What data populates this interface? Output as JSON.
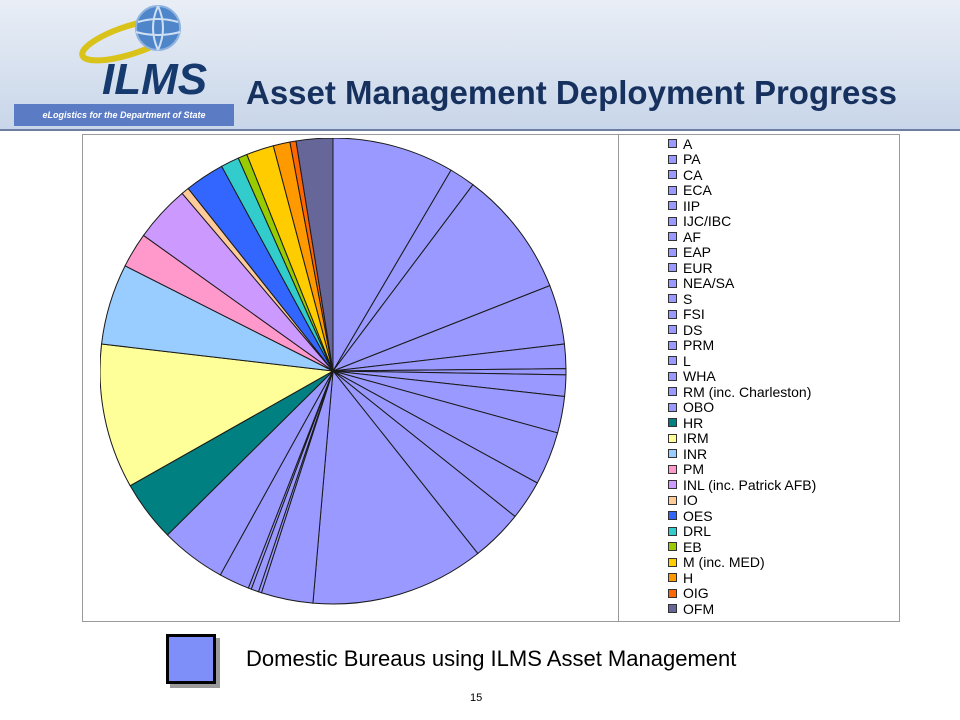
{
  "header": {
    "logo_text": "ILMS",
    "tagline": "eLogistics for the Department of State",
    "title": "Asset Management Deployment Progress"
  },
  "key": {
    "label": "Domestic Bureaus using ILMS Asset Management",
    "color": "#7f8ffa"
  },
  "page_number": "15",
  "colors": {
    "domestic": "#9999ff",
    "header_bg": "#dbe4f1",
    "title": "#17315f",
    "tagline_bg": "#5b7cc4"
  },
  "chart_data": {
    "type": "pie",
    "title": "",
    "start_angle_deg": 0,
    "direction": "clockwise",
    "legend_position": "right",
    "categories": [
      "A",
      "PA",
      "CA",
      "ECA",
      "IIP",
      "IJC/IBC",
      "AF",
      "EAP",
      "EUR",
      "NEA/SA",
      "S",
      "FSI",
      "DS",
      "PRM",
      "L",
      "WHA",
      "RM (inc. Charleston)",
      "OBO",
      "HR",
      "IRM",
      "INR",
      "PM",
      "INL (inc. Patrick AFB)",
      "IO",
      "OES",
      "DRL",
      "EB",
      "M (inc. MED)",
      "H",
      "OIG",
      "OFM"
    ],
    "values": [
      8.0,
      1.7,
      8.3,
      3.9,
      1.6,
      0.4,
      1.4,
      2.4,
      3.5,
      2.6,
      3.4,
      11.4,
      3.4,
      0.2,
      0.5,
      0.2,
      2.0,
      4.3,
      4.0,
      9.5,
      5.3,
      2.3,
      3.7,
      0.5,
      2.6,
      1.2,
      0.6,
      1.8,
      1.1,
      0.4,
      2.4
    ],
    "colors": [
      "#9999ff",
      "#9999ff",
      "#9999ff",
      "#9999ff",
      "#9999ff",
      "#9999ff",
      "#9999ff",
      "#9999ff",
      "#9999ff",
      "#9999ff",
      "#9999ff",
      "#9999ff",
      "#9999ff",
      "#9999ff",
      "#9999ff",
      "#9999ff",
      "#9999ff",
      "#9999ff",
      "#008080",
      "#ffff99",
      "#99ccff",
      "#ff99cc",
      "#cc99ff",
      "#ffcc99",
      "#3366ff",
      "#33cccc",
      "#99cc00",
      "#ffcc00",
      "#ff9900",
      "#ff6600",
      "#666699"
    ],
    "legend_swatch_colors": [
      "#9999ff",
      "#9999ff",
      "#9999ff",
      "#9999ff",
      "#9999ff",
      "#9999ff",
      "#9999ff",
      "#9999ff",
      "#9999ff",
      "#9999ff",
      "#9999ff",
      "#9999ff",
      "#9999ff",
      "#9999ff",
      "#9999ff",
      "#9999ff",
      "#9999ff",
      "#9999ff",
      "#008080",
      "#ffff99",
      "#99ccff",
      "#ff99cc",
      "#cc99ff",
      "#ffcc99",
      "#3366ff",
      "#33cccc",
      "#99cc00",
      "#ffcc00",
      "#ff9900",
      "#ff6600",
      "#666699"
    ]
  }
}
